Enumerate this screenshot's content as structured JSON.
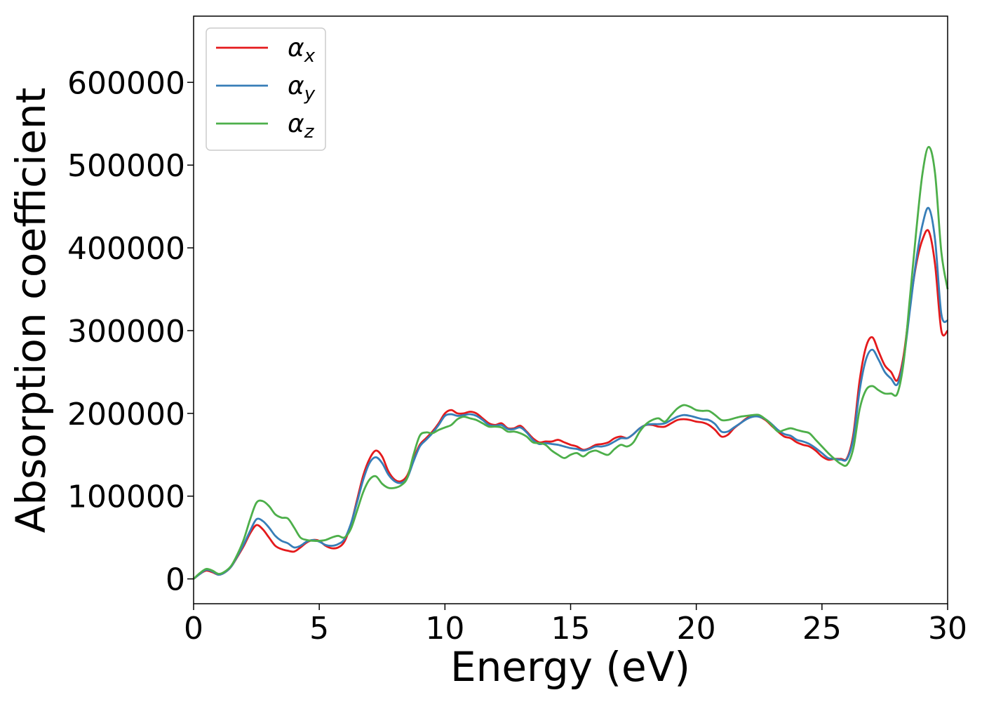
{
  "chart_data": {
    "type": "line",
    "xlabel": "Energy (eV)",
    "ylabel": "Absorption coefficient",
    "xlim": [
      0,
      30
    ],
    "ylim": [
      -30000,
      680000
    ],
    "grid": false,
    "legend_position": "top-left",
    "x_ticks": [
      0,
      5,
      10,
      15,
      20,
      25,
      30
    ],
    "x_tick_labels": [
      "0",
      "5",
      "10",
      "15",
      "20",
      "25",
      "30"
    ],
    "y_ticks": [
      0,
      100000,
      200000,
      300000,
      400000,
      500000,
      600000
    ],
    "y_tick_labels": [
      "0",
      "100000",
      "200000",
      "300000",
      "400000",
      "500000",
      "600000"
    ],
    "x": [
      0,
      0.25,
      0.5,
      0.75,
      1.0,
      1.25,
      1.5,
      1.75,
      2.0,
      2.25,
      2.5,
      2.75,
      3.0,
      3.25,
      3.5,
      3.75,
      4.0,
      4.25,
      4.5,
      4.75,
      5.0,
      5.25,
      5.5,
      5.75,
      6.0,
      6.25,
      6.5,
      6.75,
      7.0,
      7.25,
      7.5,
      7.75,
      8.0,
      8.25,
      8.5,
      8.75,
      9.0,
      9.25,
      9.5,
      9.75,
      10.0,
      10.25,
      10.5,
      10.75,
      11.0,
      11.25,
      11.5,
      11.75,
      12.0,
      12.25,
      12.5,
      12.75,
      13.0,
      13.25,
      13.5,
      13.75,
      14.0,
      14.25,
      14.5,
      14.75,
      15.0,
      15.25,
      15.5,
      15.75,
      16.0,
      16.25,
      16.5,
      16.75,
      17.0,
      17.25,
      17.5,
      17.75,
      18.0,
      18.25,
      18.5,
      18.75,
      19.0,
      19.25,
      19.5,
      19.75,
      20.0,
      20.25,
      20.5,
      20.75,
      21.0,
      21.25,
      21.5,
      21.75,
      22.0,
      22.25,
      22.5,
      22.75,
      23.0,
      23.25,
      23.5,
      23.75,
      24.0,
      24.25,
      24.5,
      24.75,
      25.0,
      25.25,
      25.5,
      25.75,
      26.0,
      26.25,
      26.5,
      26.75,
      27.0,
      27.25,
      27.5,
      27.75,
      28.0,
      28.25,
      28.5,
      28.75,
      29.0,
      29.25,
      29.5,
      29.75,
      30.0
    ],
    "series": [
      {
        "name": "α_x",
        "label_main": "α",
        "label_sub": "x",
        "color": "#e41a1c",
        "values": [
          0,
          6000,
          10000,
          8000,
          5000,
          8000,
          15000,
          27000,
          40000,
          55000,
          65000,
          60000,
          50000,
          40000,
          36000,
          34000,
          33000,
          38000,
          44000,
          47000,
          46000,
          40000,
          37000,
          38000,
          45000,
          65000,
          95000,
          125000,
          145000,
          155000,
          148000,
          130000,
          120000,
          118000,
          125000,
          145000,
          162000,
          170000,
          178000,
          188000,
          200000,
          204000,
          200000,
          200000,
          202000,
          200000,
          194000,
          188000,
          186000,
          188000,
          182000,
          182000,
          185000,
          178000,
          170000,
          165000,
          166000,
          166000,
          168000,
          165000,
          162000,
          160000,
          156000,
          158000,
          162000,
          163000,
          165000,
          170000,
          172000,
          170000,
          175000,
          182000,
          186000,
          186000,
          184000,
          184000,
          188000,
          192000,
          193000,
          192000,
          190000,
          189000,
          186000,
          180000,
          172000,
          174000,
          182000,
          188000,
          194000,
          197000,
          196000,
          192000,
          185000,
          178000,
          172000,
          170000,
          165000,
          162000,
          160000,
          155000,
          148000,
          144000,
          145000,
          145000,
          146000,
          175000,
          240000,
          280000,
          292000,
          275000,
          258000,
          250000,
          240000,
          270000,
          330000,
          380000,
          410000,
          420000,
          380000,
          300000,
          300000
        ]
      },
      {
        "name": "α_y",
        "label_main": "α",
        "label_sub": "y",
        "color": "#377eb8",
        "values": [
          0,
          6000,
          11000,
          9000,
          5000,
          8000,
          15000,
          28000,
          42000,
          58000,
          72000,
          70000,
          62000,
          52000,
          46000,
          43000,
          38000,
          40000,
          45000,
          47000,
          45000,
          41000,
          40000,
          42000,
          48000,
          66000,
          92000,
          120000,
          140000,
          147000,
          140000,
          126000,
          118000,
          116000,
          122000,
          142000,
          160000,
          168000,
          176000,
          186000,
          197000,
          199000,
          197000,
          198000,
          199000,
          197000,
          192000,
          186000,
          185000,
          186000,
          181000,
          181000,
          183000,
          177000,
          168000,
          163000,
          164000,
          163000,
          162000,
          160000,
          158000,
          157000,
          155000,
          157000,
          160000,
          160000,
          162000,
          166000,
          170000,
          170000,
          175000,
          182000,
          186000,
          187000,
          187000,
          188000,
          192000,
          196000,
          198000,
          197000,
          195000,
          193000,
          192000,
          187000,
          178000,
          178000,
          183000,
          188000,
          193000,
          196000,
          196000,
          193000,
          187000,
          180000,
          175000,
          173000,
          168000,
          166000,
          163000,
          158000,
          152000,
          146000,
          145000,
          144000,
          145000,
          170000,
          228000,
          265000,
          277000,
          265000,
          250000,
          242000,
          235000,
          265000,
          325000,
          385000,
          428000,
          448000,
          410000,
          320000,
          312000
        ]
      },
      {
        "name": "α_z",
        "label_main": "α",
        "label_sub": "z",
        "color": "#4daf4a",
        "values": [
          0,
          7000,
          12000,
          10000,
          6000,
          9000,
          16000,
          30000,
          48000,
          72000,
          92000,
          94000,
          88000,
          78000,
          74000,
          73000,
          62000,
          50000,
          47000,
          46000,
          46000,
          47000,
          50000,
          52000,
          50000,
          60000,
          82000,
          105000,
          120000,
          124000,
          115000,
          110000,
          110000,
          113000,
          122000,
          150000,
          173000,
          177000,
          176000,
          180000,
          183000,
          186000,
          193000,
          196000,
          194000,
          192000,
          188000,
          184000,
          184000,
          183000,
          178000,
          178000,
          176000,
          172000,
          165000,
          164000,
          162000,
          155000,
          150000,
          146000,
          150000,
          152000,
          148000,
          153000,
          155000,
          152000,
          150000,
          157000,
          162000,
          160000,
          165000,
          178000,
          187000,
          192000,
          194000,
          190000,
          198000,
          206000,
          210000,
          208000,
          204000,
          203000,
          203000,
          198000,
          192000,
          192000,
          194000,
          196000,
          197000,
          198000,
          198000,
          193000,
          186000,
          178000,
          180000,
          182000,
          180000,
          178000,
          176000,
          168000,
          160000,
          152000,
          145000,
          139000,
          138000,
          158000,
          205000,
          228000,
          233000,
          228000,
          224000,
          224000,
          224000,
          262000,
          340000,
          420000,
          490000,
          522000,
          490000,
          395000,
          350000
        ]
      }
    ]
  }
}
